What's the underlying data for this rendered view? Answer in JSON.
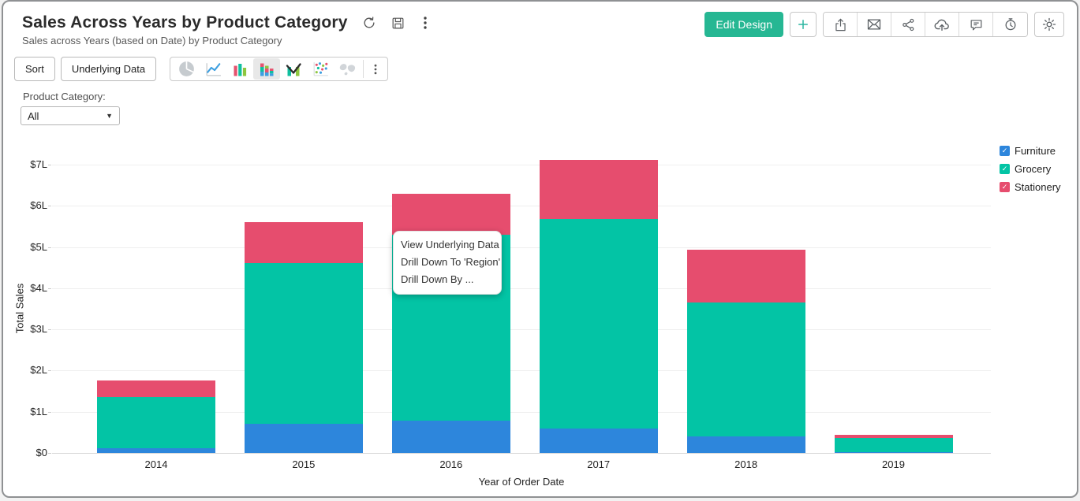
{
  "header": {
    "title": "Sales Across Years by Product Category",
    "subtitle": "Sales across Years (based on Date) by Product Category",
    "edit_design_label": "Edit Design",
    "title_action_icons": [
      "refresh-icon",
      "save-icon",
      "more-options-icon"
    ],
    "right_action_icons": [
      "add-icon",
      "export-icon",
      "email-icon",
      "share-icon",
      "publish-icon",
      "comment-icon",
      "alert-icon",
      "settings-gear-icon"
    ]
  },
  "toolbar": {
    "sort_label": "Sort",
    "underlying_data_label": "Underlying Data",
    "chart_types": [
      "pie",
      "line",
      "bar",
      "stacked-bar",
      "combo",
      "scatter",
      "map"
    ],
    "selected_chart_type": "stacked-bar"
  },
  "filter": {
    "label": "Product Category:",
    "value": "All"
  },
  "context_menu": {
    "items": [
      "View Underlying Data",
      "Drill Down To 'Region'",
      "Drill Down By ..."
    ]
  },
  "colors": {
    "accent_green": "#26b793",
    "accent_teal": "#2ab5a0",
    "furniture_blue": "#2d86dc",
    "grocery_teal": "#03c4a5",
    "stationery_pink": "#e64d6e"
  },
  "chart_data": {
    "type": "bar",
    "stacked": true,
    "title": "Sales Across Years by Product Category",
    "categories": [
      "2014",
      "2015",
      "2016",
      "2017",
      "2018",
      "2019"
    ],
    "series": [
      {
        "name": "Furniture",
        "color": "#2d86dc",
        "values": [
          0.11,
          0.7,
          0.78,
          0.6,
          0.4,
          0.02
        ]
      },
      {
        "name": "Grocery",
        "color": "#03c4a5",
        "values": [
          1.25,
          3.9,
          4.52,
          5.08,
          3.25,
          0.34
        ]
      },
      {
        "name": "Stationery",
        "color": "#e64d6e",
        "values": [
          0.4,
          1.01,
          0.99,
          1.43,
          1.28,
          0.08
        ]
      }
    ],
    "totals": [
      1.76,
      5.61,
      6.29,
      7.11,
      4.93,
      0.44
    ],
    "xlabel": "Year of Order Date",
    "ylabel": "Total Sales",
    "yticks": [
      "$0",
      "$1L",
      "$2L",
      "$3L",
      "$4L",
      "$5L",
      "$6L",
      "$7L"
    ],
    "ylim": [
      0,
      7.5
    ],
    "unit": "lakh ($L)",
    "grid": true,
    "legend_position": "top-right",
    "legend_checked": [
      true,
      true,
      true
    ]
  }
}
